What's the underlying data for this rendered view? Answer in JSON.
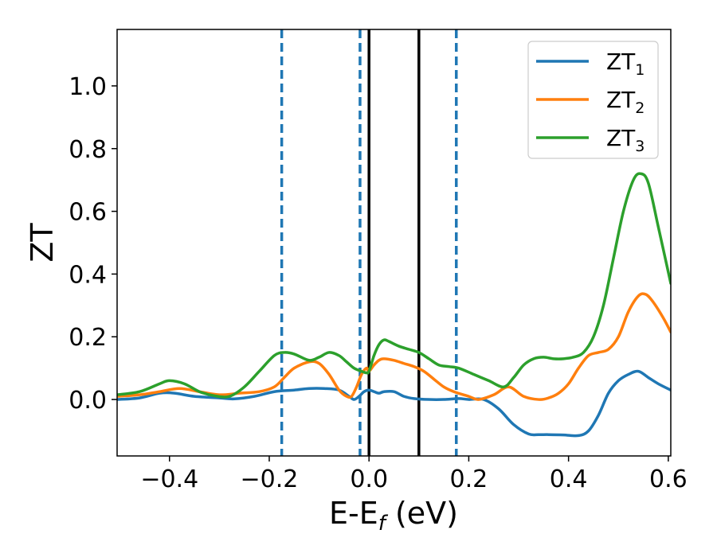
{
  "chart_data": {
    "type": "line",
    "xlabel": {
      "main": "E-E",
      "sub": "f",
      "suffix": " (eV)"
    },
    "ylabel": "ZT",
    "xlim": [
      -0.505,
      0.605
    ],
    "ylim": [
      -0.18,
      1.18
    ],
    "xticks": [
      -0.4,
      -0.2,
      0.0,
      0.2,
      0.4,
      0.6
    ],
    "xtick_labels": [
      "−0.4",
      "−0.2",
      "0.0",
      "0.2",
      "0.4",
      "0.6"
    ],
    "yticks": [
      0.0,
      0.2,
      0.4,
      0.6,
      0.8,
      1.0
    ],
    "ytick_labels": [
      "0.0",
      "0.2",
      "0.4",
      "0.6",
      "0.8",
      "1.0"
    ],
    "grid": false,
    "legend_position": "top-right",
    "vlines": [
      {
        "x": -0.175,
        "style": "dashed",
        "color": "#1f77b4"
      },
      {
        "x": -0.018,
        "style": "dashed",
        "color": "#1f77b4"
      },
      {
        "x": 0.175,
        "style": "dashed",
        "color": "#1f77b4"
      },
      {
        "x": 0.0,
        "style": "solid",
        "color": "#000000"
      },
      {
        "x": 0.1,
        "style": "solid",
        "color": "#000000"
      }
    ],
    "series": [
      {
        "name": "ZT",
        "sub": "1",
        "color": "#1f77b4",
        "x": [
          -0.505,
          -0.46,
          -0.42,
          -0.39,
          -0.35,
          -0.3,
          -0.27,
          -0.23,
          -0.19,
          -0.15,
          -0.12,
          -0.09,
          -0.06,
          -0.04,
          -0.03,
          -0.02,
          -0.01,
          0.0,
          0.01,
          0.02,
          0.03,
          0.05,
          0.07,
          0.09,
          0.12,
          0.15,
          0.18,
          0.2,
          0.23,
          0.26,
          0.29,
          0.32,
          0.34,
          0.36,
          0.39,
          0.42,
          0.44,
          0.46,
          0.48,
          0.5,
          0.52,
          0.54,
          0.56,
          0.58,
          0.605
        ],
        "y": [
          0.0,
          0.005,
          0.02,
          0.02,
          0.01,
          0.005,
          0.002,
          0.01,
          0.025,
          0.03,
          0.035,
          0.035,
          0.03,
          0.01,
          0.0,
          0.01,
          0.025,
          0.03,
          0.025,
          0.02,
          0.025,
          0.025,
          0.01,
          0.003,
          0.0,
          0.0,
          0.003,
          0.0,
          0.0,
          -0.03,
          -0.08,
          -0.11,
          -0.112,
          -0.112,
          -0.113,
          -0.115,
          -0.1,
          -0.05,
          0.02,
          0.06,
          0.08,
          0.09,
          0.07,
          0.05,
          0.03
        ]
      },
      {
        "name": "ZT",
        "sub": "2",
        "color": "#ff7f0e",
        "x": [
          -0.505,
          -0.46,
          -0.42,
          -0.38,
          -0.34,
          -0.3,
          -0.26,
          -0.22,
          -0.19,
          -0.17,
          -0.15,
          -0.12,
          -0.1,
          -0.08,
          -0.06,
          -0.045,
          -0.035,
          -0.025,
          -0.015,
          -0.005,
          0.0,
          0.01,
          0.02,
          0.03,
          0.05,
          0.07,
          0.09,
          0.11,
          0.13,
          0.15,
          0.17,
          0.2,
          0.22,
          0.25,
          0.28,
          0.31,
          0.34,
          0.36,
          0.38,
          0.4,
          0.42,
          0.44,
          0.46,
          0.48,
          0.5,
          0.52,
          0.54,
          0.555,
          0.57,
          0.59,
          0.605
        ],
        "y": [
          0.01,
          0.015,
          0.025,
          0.035,
          0.025,
          0.015,
          0.02,
          0.025,
          0.04,
          0.07,
          0.1,
          0.12,
          0.115,
          0.08,
          0.03,
          0.01,
          0.01,
          0.04,
          0.08,
          0.1,
          0.09,
          0.11,
          0.125,
          0.13,
          0.125,
          0.115,
          0.105,
          0.09,
          0.065,
          0.04,
          0.025,
          0.01,
          0.0,
          0.015,
          0.04,
          0.01,
          0.0,
          0.005,
          0.02,
          0.05,
          0.1,
          0.14,
          0.15,
          0.16,
          0.2,
          0.28,
          0.33,
          0.335,
          0.31,
          0.26,
          0.215
        ]
      },
      {
        "name": "ZT",
        "sub": "3",
        "color": "#2ca02c",
        "x": [
          -0.505,
          -0.46,
          -0.42,
          -0.4,
          -0.37,
          -0.34,
          -0.31,
          -0.28,
          -0.25,
          -0.22,
          -0.19,
          -0.17,
          -0.15,
          -0.12,
          -0.1,
          -0.08,
          -0.06,
          -0.045,
          -0.03,
          -0.015,
          -0.005,
          0.0,
          0.01,
          0.02,
          0.03,
          0.04,
          0.06,
          0.08,
          0.1,
          0.12,
          0.14,
          0.16,
          0.18,
          0.21,
          0.24,
          0.27,
          0.29,
          0.31,
          0.33,
          0.35,
          0.37,
          0.39,
          0.41,
          0.43,
          0.45,
          0.47,
          0.49,
          0.51,
          0.53,
          0.545,
          0.56,
          0.58,
          0.605
        ],
        "y": [
          0.015,
          0.025,
          0.05,
          0.06,
          0.05,
          0.025,
          0.012,
          0.01,
          0.04,
          0.09,
          0.14,
          0.15,
          0.145,
          0.125,
          0.135,
          0.15,
          0.14,
          0.12,
          0.1,
          0.09,
          0.085,
          0.09,
          0.14,
          0.175,
          0.19,
          0.185,
          0.17,
          0.16,
          0.15,
          0.13,
          0.11,
          0.105,
          0.1,
          0.08,
          0.06,
          0.04,
          0.07,
          0.11,
          0.13,
          0.135,
          0.13,
          0.13,
          0.135,
          0.15,
          0.2,
          0.3,
          0.45,
          0.6,
          0.7,
          0.72,
          0.69,
          0.55,
          0.37
        ]
      }
    ]
  }
}
